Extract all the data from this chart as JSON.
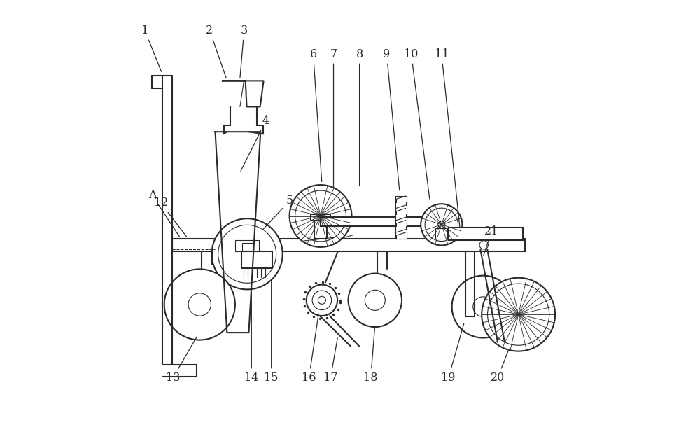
{
  "bg_color": "#ffffff",
  "line_color": "#2a2a2a",
  "lw": 1.5,
  "lw_thin": 0.8,
  "labels_data": {
    "1": [
      0.025,
      0.93,
      0.065,
      0.83
    ],
    "2": [
      0.175,
      0.93,
      0.215,
      0.815
    ],
    "3": [
      0.255,
      0.93,
      0.245,
      0.815
    ],
    "4": [
      0.305,
      0.72,
      0.245,
      0.6
    ],
    "5": [
      0.36,
      0.535,
      0.295,
      0.465
    ],
    "6": [
      0.415,
      0.875,
      0.435,
      0.575
    ],
    "7": [
      0.462,
      0.875,
      0.462,
      0.56
    ],
    "8": [
      0.522,
      0.875,
      0.522,
      0.565
    ],
    "9": [
      0.585,
      0.875,
      0.615,
      0.555
    ],
    "10": [
      0.642,
      0.875,
      0.685,
      0.535
    ],
    "11": [
      0.712,
      0.875,
      0.755,
      0.468
    ],
    "12": [
      0.062,
      0.53,
      0.125,
      0.448
    ],
    "13": [
      0.09,
      0.125,
      0.148,
      0.225
    ],
    "14": [
      0.272,
      0.125,
      0.272,
      0.358
    ],
    "15": [
      0.318,
      0.125,
      0.318,
      0.358
    ],
    "16": [
      0.405,
      0.125,
      0.428,
      0.278
    ],
    "17": [
      0.455,
      0.125,
      0.472,
      0.222
    ],
    "18": [
      0.548,
      0.125,
      0.558,
      0.248
    ],
    "19": [
      0.728,
      0.125,
      0.765,
      0.255
    ],
    "20": [
      0.842,
      0.125,
      0.868,
      0.192
    ],
    "21": [
      0.828,
      0.465,
      0.808,
      0.405
    ],
    "A": [
      0.042,
      0.548,
      0.108,
      0.448
    ]
  }
}
